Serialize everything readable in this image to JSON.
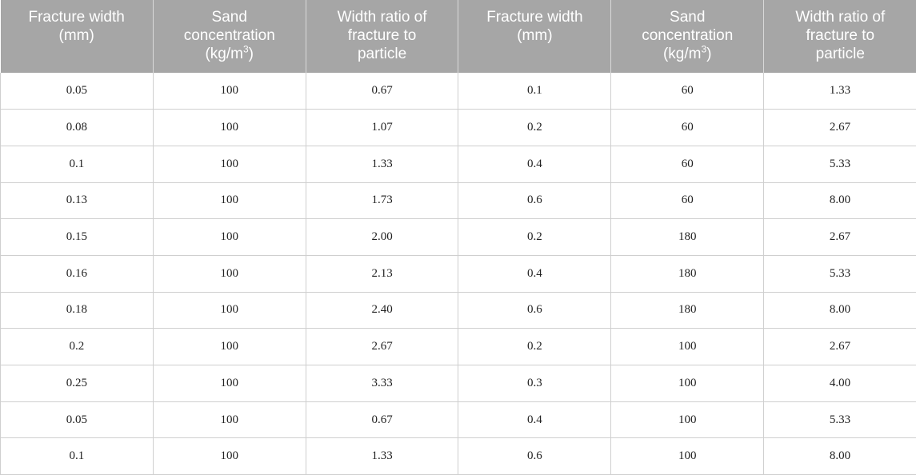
{
  "table": {
    "headers": [
      {
        "lines": [
          "Fracture width",
          "(mm)"
        ],
        "sup": ""
      },
      {
        "lines": [
          "Sand",
          "concentration",
          "(kg/m",
          ")"
        ],
        "sup": "3"
      },
      {
        "lines": [
          "Width ratio of",
          "fracture to",
          "particle"
        ],
        "sup": ""
      },
      {
        "lines": [
          "Fracture width",
          "(mm)"
        ],
        "sup": ""
      },
      {
        "lines": [
          "Sand",
          "concentration",
          "(kg/m",
          ")"
        ],
        "sup": "3"
      },
      {
        "lines": [
          "Width ratio of",
          "fracture to",
          "particle"
        ],
        "sup": ""
      }
    ],
    "rows": [
      [
        "0.05",
        "100",
        "0.67",
        "0.1",
        "60",
        "1.33"
      ],
      [
        "0.08",
        "100",
        "1.07",
        "0.2",
        "60",
        "2.67"
      ],
      [
        "0.1",
        "100",
        "1.33",
        "0.4",
        "60",
        "5.33"
      ],
      [
        "0.13",
        "100",
        "1.73",
        "0.6",
        "60",
        "8.00"
      ],
      [
        "0.15",
        "100",
        "2.00",
        "0.2",
        "180",
        "2.67"
      ],
      [
        "0.16",
        "100",
        "2.13",
        "0.4",
        "180",
        "5.33"
      ],
      [
        "0.18",
        "100",
        "2.40",
        "0.6",
        "180",
        "8.00"
      ],
      [
        "0.2",
        "100",
        "2.67",
        "0.2",
        "100",
        "2.67"
      ],
      [
        "0.25",
        "100",
        "3.33",
        "0.3",
        "100",
        "4.00"
      ],
      [
        "0.05",
        "100",
        "0.67",
        "0.4",
        "100",
        "5.33"
      ],
      [
        "0.1",
        "100",
        "1.33",
        "0.6",
        "100",
        "8.00"
      ]
    ]
  },
  "colors": {
    "header_background": "#a6a6a6",
    "header_text": "#ffffff",
    "grid_line": "#cfcfcf"
  }
}
